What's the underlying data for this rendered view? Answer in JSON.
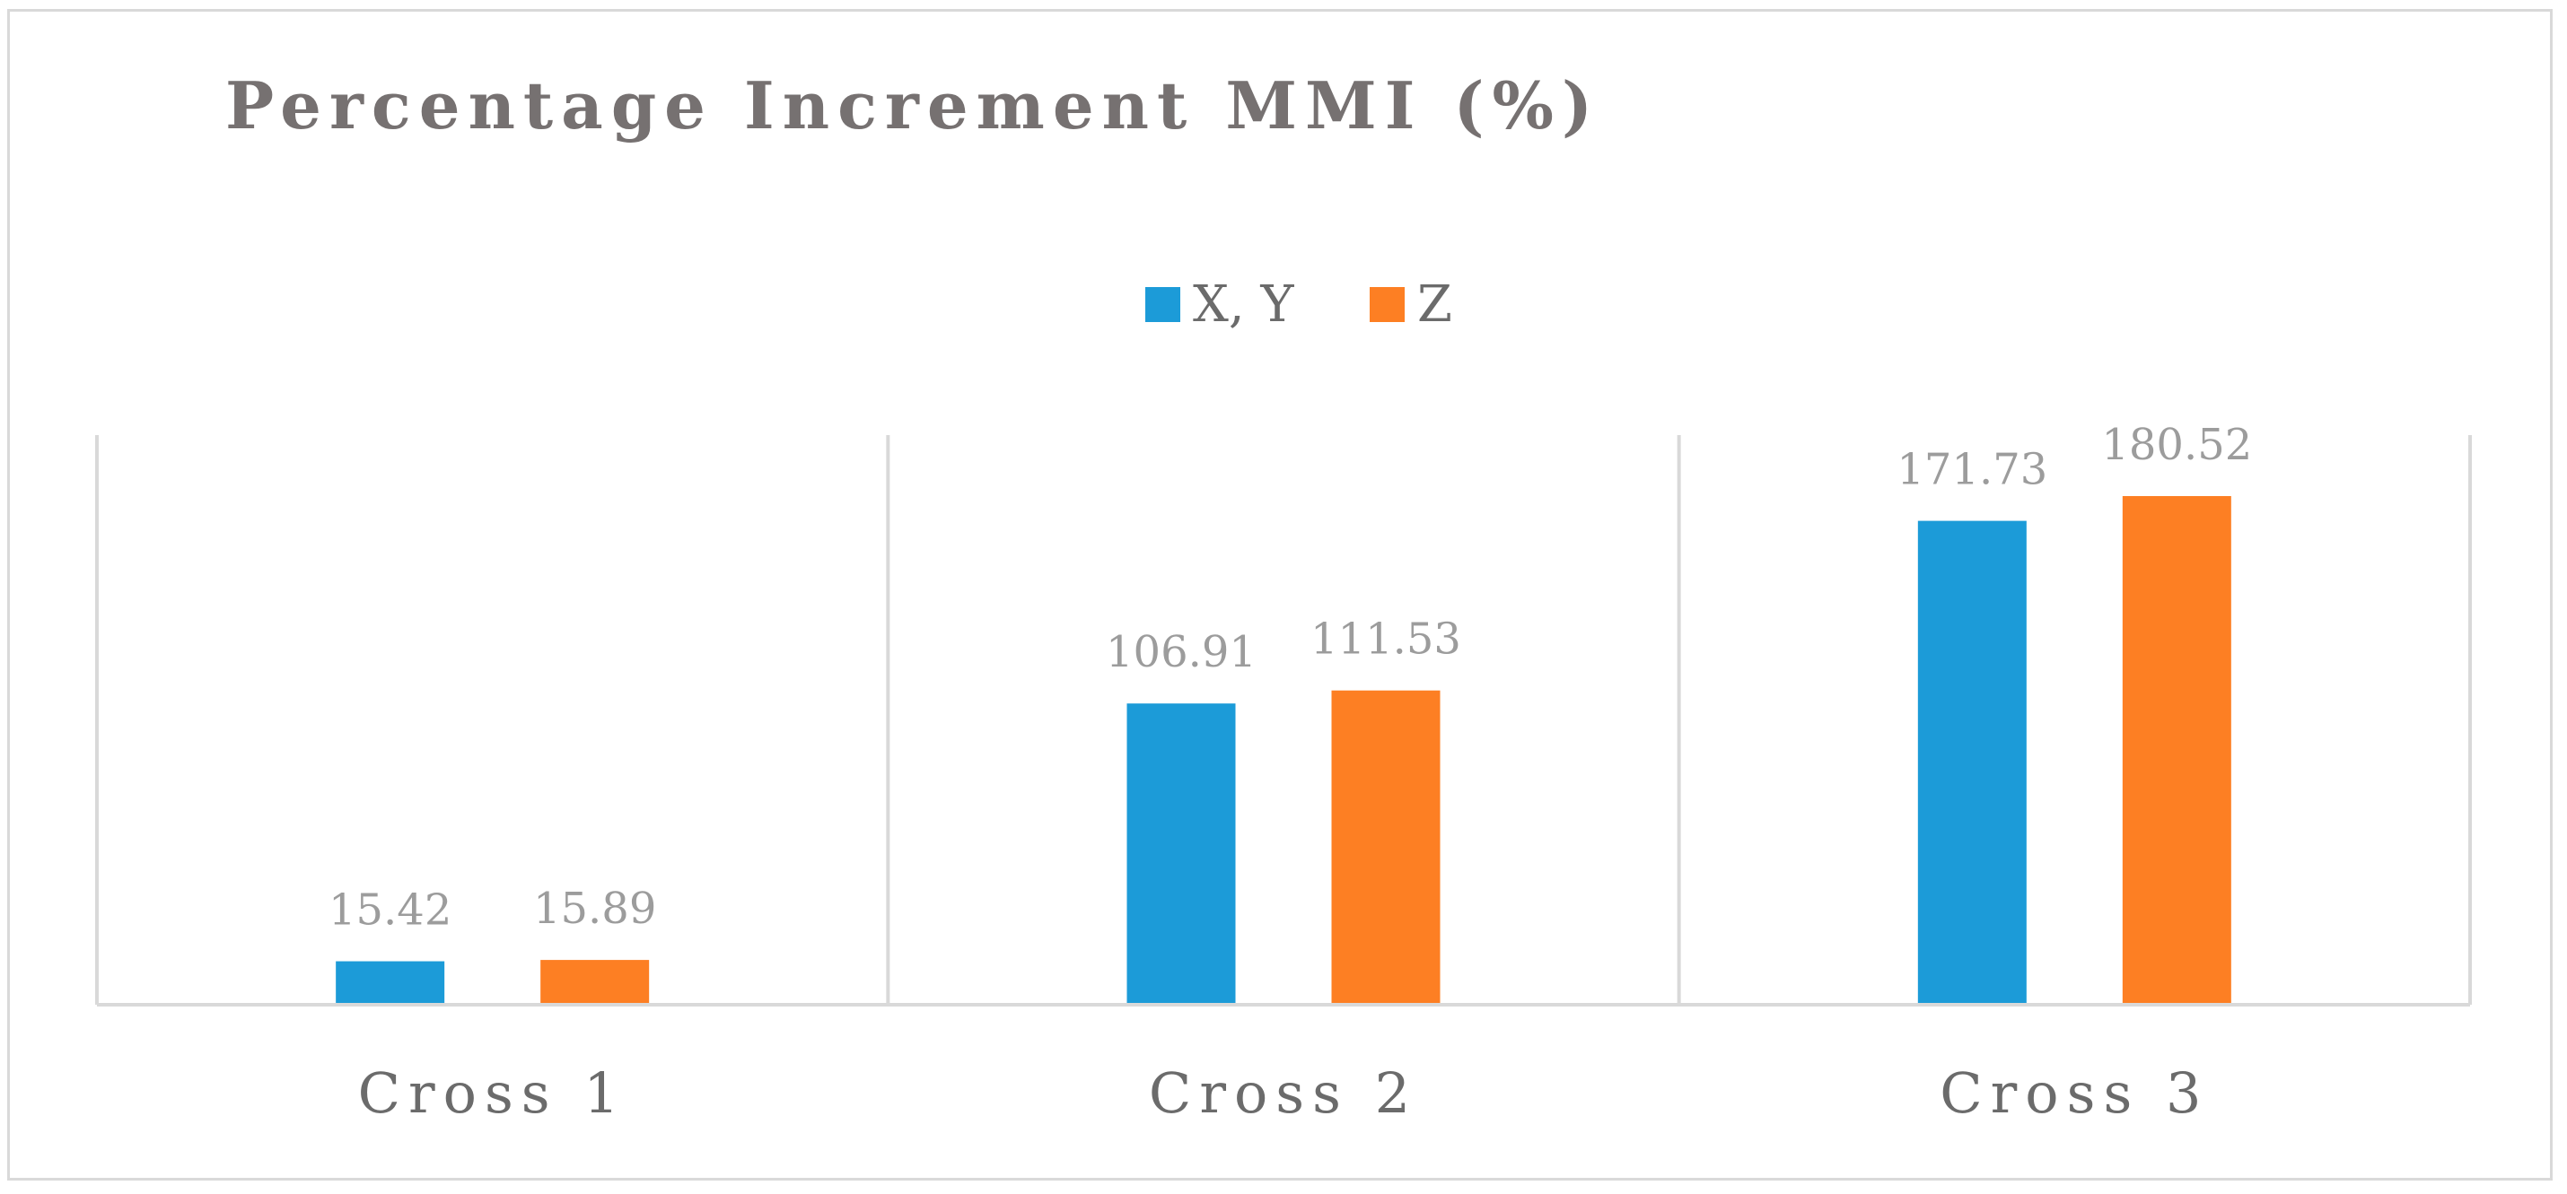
{
  "chart_data": {
    "type": "bar",
    "title": "Percentage Increment MMI (%)",
    "categories": [
      "Cross 1",
      "Cross 2",
      "Cross 3"
    ],
    "series": [
      {
        "name": "X, Y",
        "values": [
          15.42,
          106.91,
          171.73
        ],
        "color": "#1c9bd8"
      },
      {
        "name": "Z",
        "values": [
          15.89,
          111.53,
          180.52
        ],
        "color": "#fd7f23"
      }
    ],
    "xlabel": "",
    "ylabel": "",
    "ylim": [
      0,
      200
    ],
    "grid": false,
    "legend_position": "top-center",
    "value_labels": true
  }
}
